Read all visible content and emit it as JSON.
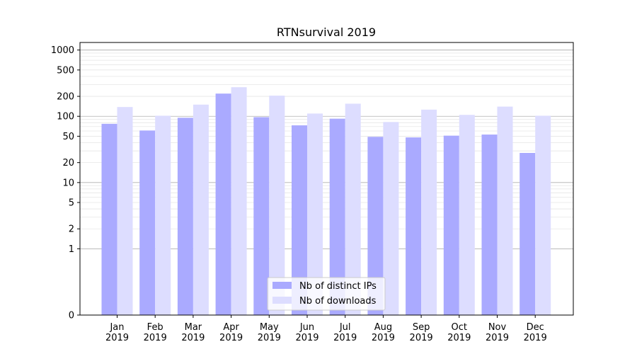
{
  "chart_data": {
    "type": "bar",
    "title": "RTNsurvival 2019",
    "xlabel": "",
    "ylabel": "",
    "yscale": "symlog",
    "ylim": [
      0,
      1300
    ],
    "grid": true,
    "legend_position": "bottom-center",
    "categories": [
      [
        "Jan",
        "2019"
      ],
      [
        "Feb",
        "2019"
      ],
      [
        "Mar",
        "2019"
      ],
      [
        "Apr",
        "2019"
      ],
      [
        "May",
        "2019"
      ],
      [
        "Jun",
        "2019"
      ],
      [
        "Jul",
        "2019"
      ],
      [
        "Aug",
        "2019"
      ],
      [
        "Sep",
        "2019"
      ],
      [
        "Oct",
        "2019"
      ],
      [
        "Nov",
        "2019"
      ],
      [
        "Dec",
        "2019"
      ]
    ],
    "y_ticks": [
      {
        "value": 0,
        "label": "0"
      },
      {
        "value": 1,
        "label": "1"
      },
      {
        "value": 2,
        "label": "2"
      },
      {
        "value": 5,
        "label": "5"
      },
      {
        "value": 10,
        "label": "10"
      },
      {
        "value": 20,
        "label": "20"
      },
      {
        "value": 50,
        "label": "50"
      },
      {
        "value": 100,
        "label": "100"
      },
      {
        "value": 200,
        "label": "200"
      },
      {
        "value": 500,
        "label": "500"
      },
      {
        "value": 1000,
        "label": "1000"
      }
    ],
    "series": [
      {
        "name": "Nb of distinct IPs",
        "color": "#aaaaff",
        "values": [
          77,
          61,
          95,
          220,
          97,
          73,
          92,
          49,
          48,
          51,
          53,
          28
        ]
      },
      {
        "name": "Nb of downloads",
        "color": "#ddddff",
        "values": [
          138,
          102,
          150,
          275,
          205,
          110,
          155,
          82,
          126,
          105,
          140,
          102
        ]
      }
    ]
  }
}
